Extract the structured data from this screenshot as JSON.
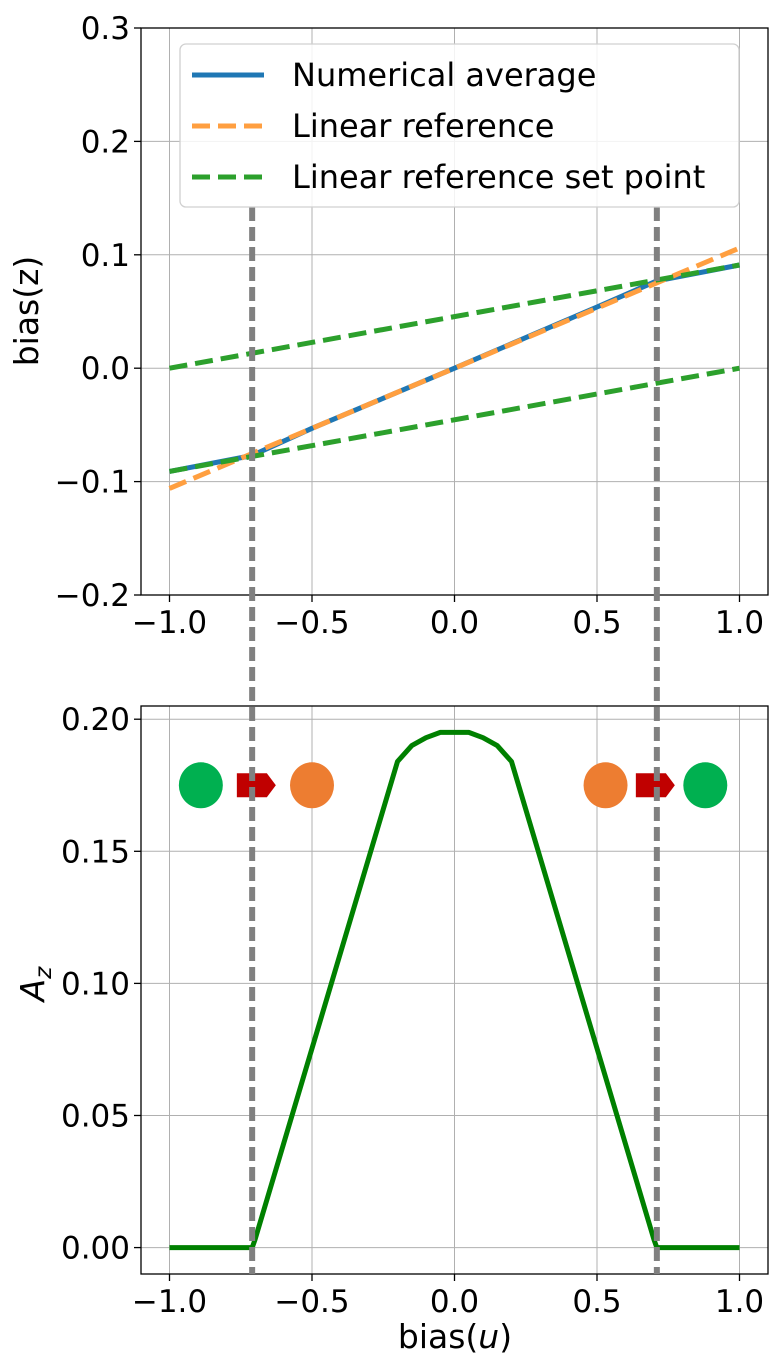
{
  "chart_data": [
    {
      "type": "line",
      "ylabel": "bias(z)",
      "xlabel": "",
      "xlim": [
        -1.1,
        1.1
      ],
      "ylim": [
        -0.2,
        0.3
      ],
      "grid": true,
      "legend_position": "top",
      "x_ticks": [
        -1.0,
        -0.5,
        0.0,
        0.5,
        1.0
      ],
      "x_tick_labels": [
        "−1.0",
        "−0.5",
        "0.0",
        "0.5",
        "1.0"
      ],
      "y_ticks": [
        -0.2,
        -0.1,
        0.0,
        0.1,
        0.2,
        0.3
      ],
      "y_tick_labels": [
        "−0.2",
        "−0.1",
        "0.0",
        "0.1",
        "0.2",
        "0.3"
      ],
      "series": [
        {
          "name": "Numerical average",
          "color": "#1f77b4",
          "style": "solid",
          "x": [
            -1.0,
            -0.71,
            -0.5,
            0.0,
            0.5,
            0.71,
            1.0
          ],
          "y": [
            -0.091,
            -0.077,
            -0.053,
            0.0,
            0.054,
            0.077,
            0.091
          ]
        },
        {
          "name": "Linear reference",
          "color": "#ff9f40",
          "style": "dashed",
          "x": [
            -1.0,
            1.0
          ],
          "y": [
            -0.106,
            0.106
          ]
        },
        {
          "name": "Linear reference set point",
          "color": "#2ca02c",
          "style": "dashed",
          "x": [
            -1.0,
            1.0
          ],
          "y": [
            0.0,
            0.091
          ]
        },
        {
          "name": "",
          "color": "#2ca02c",
          "style": "dashed",
          "x": [
            -1.0,
            1.0
          ],
          "y": [
            -0.091,
            0.0
          ]
        }
      ],
      "vertical_markers": {
        "x": [
          -0.71,
          0.71
        ],
        "color": "#808080",
        "style": "dashed"
      }
    },
    {
      "type": "line",
      "ylabel": "A_z",
      "xlabel": "bias(u)",
      "xlim": [
        -1.1,
        1.1
      ],
      "ylim": [
        -0.01,
        0.205
      ],
      "grid": true,
      "x_ticks": [
        -1.0,
        -0.5,
        0.0,
        0.5,
        1.0
      ],
      "x_tick_labels": [
        "−1.0",
        "−0.5",
        "0.0",
        "0.5",
        "1.0"
      ],
      "y_ticks": [
        0.0,
        0.05,
        0.1,
        0.15,
        0.2
      ],
      "y_tick_labels": [
        "0.00",
        "0.05",
        "0.10",
        "0.15",
        "0.20"
      ],
      "series": [
        {
          "color": "#008000",
          "style": "solid",
          "x": [
            -1.0,
            -0.71,
            -0.7,
            -0.2,
            -0.15,
            -0.1,
            -0.05,
            0.0,
            0.05,
            0.1,
            0.15,
            0.2,
            0.7,
            0.71,
            1.0
          ],
          "y": [
            0.0,
            0.0,
            0.003,
            0.184,
            0.19,
            0.193,
            0.195,
            0.195,
            0.195,
            0.193,
            0.19,
            0.184,
            0.003,
            0.0,
            0.0
          ]
        }
      ],
      "markers": [
        {
          "shape": "circle",
          "color": "#00b050",
          "x": -0.89,
          "y": 0.175
        },
        {
          "shape": "arrow",
          "color": "#c00000",
          "x": -0.69,
          "y": 0.175
        },
        {
          "shape": "circle",
          "color": "#ed7d31",
          "x": -0.5,
          "y": 0.175
        },
        {
          "shape": "circle",
          "color": "#ed7d31",
          "x": 0.53,
          "y": 0.175
        },
        {
          "shape": "arrow",
          "color": "#c00000",
          "x": 0.71,
          "y": 0.175
        },
        {
          "shape": "circle",
          "color": "#00b050",
          "x": 0.88,
          "y": 0.175
        }
      ],
      "vertical_markers": {
        "x": [
          -0.71,
          0.71
        ],
        "color": "#808080",
        "style": "dashed"
      }
    }
  ]
}
